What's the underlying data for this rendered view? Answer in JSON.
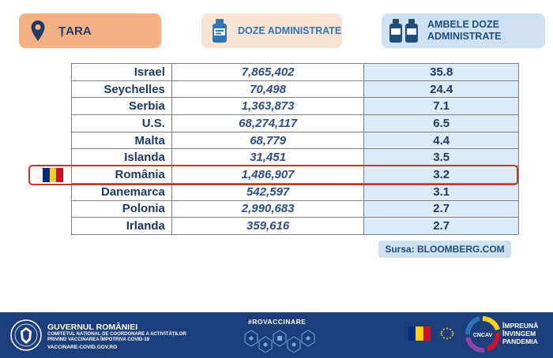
{
  "header": {
    "country_label": "ȚARA",
    "doses_label": "DOZE ADMINISTRATE",
    "both_doses_label": "AMBELE DOZE ADMINISTRATE"
  },
  "table": {
    "rows": [
      {
        "country": "Israel",
        "doses": "7,865,402",
        "both": "35.8"
      },
      {
        "country": "Seychelles",
        "doses": "70,498",
        "both": "24.4"
      },
      {
        "country": "Serbia",
        "doses": "1,363,873",
        "both": "7.1"
      },
      {
        "country": "U.S.",
        "doses": "68,274,117",
        "both": "6.5"
      },
      {
        "country": "Malta",
        "doses": "68,779",
        "both": "4.4"
      },
      {
        "country": "Islanda",
        "doses": "31,451",
        "both": "3.5"
      },
      {
        "country": "România",
        "doses": "1,486,907",
        "both": "3.2"
      },
      {
        "country": "Danemarca",
        "doses": "542,597",
        "both": "3.1"
      },
      {
        "country": "Polonia",
        "doses": "2,990,683",
        "both": "2.7"
      },
      {
        "country": "Irlanda",
        "doses": "359,616",
        "both": "2.7"
      }
    ],
    "highlighted_row": "România"
  },
  "source": "Sursa: BLOOMBERG.COM",
  "footer": {
    "gov_title": "GUVERNUL ROMÂNIEI",
    "gov_subtitle": "COMITETUL NAȚIONAL DE COORDONARE A ACTIVITĂȚILOR PRIVIND VACCINAREA ÎMPOTRIVA COVID-19",
    "gov_url": "VACCINARE-COVID.GOV.RO",
    "hashtag": "#ROVACCINARE",
    "slogan_line1": "ÎMPREUNĂ",
    "slogan_line2": "ÎNVINGEM",
    "slogan_line3": "PANDEMIA",
    "logo_text": "CNCAV"
  },
  "colors": {
    "highlight_border": "#c0392b",
    "flag_blue": "#002b7f",
    "flag_yellow": "#fcd116",
    "flag_red": "#ce1126",
    "footer_bg": "#1c3e7a"
  }
}
